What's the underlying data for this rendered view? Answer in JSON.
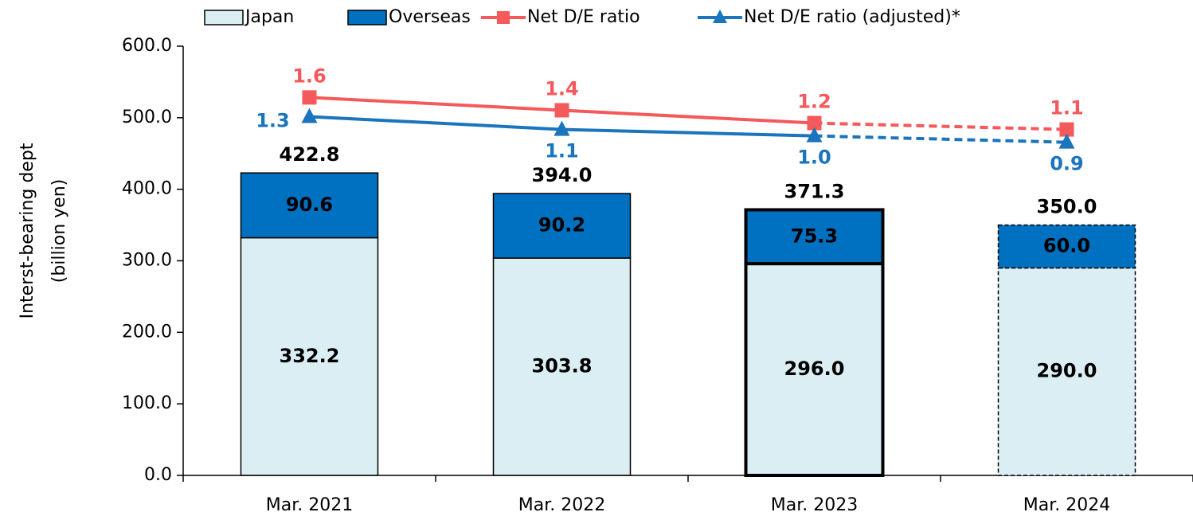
{
  "chart_data": {
    "type": "bar",
    "y_label": [
      "Interst-bearing dept",
      "(billion yen)"
    ],
    "categories": [
      "Mar. 2021",
      "Mar. 2022",
      "Mar. 2023",
      "Mar. 2024"
    ],
    "series": [
      {
        "name": "Japan",
        "color": "#daeef3",
        "values": [
          332.2,
          303.8,
          296,
          290
        ],
        "value_labels": [
          "332.2",
          "303.8",
          "296.0",
          "290.0"
        ]
      },
      {
        "name": "Overseas",
        "color": "#0070c0",
        "values": [
          90.6,
          90.2,
          75.3,
          60
        ],
        "value_labels": [
          "90.6",
          "90.2",
          "75.3",
          "60.0"
        ]
      },
      {
        "name": "Net D/E ratio",
        "color": "#f4595b",
        "type": "line",
        "axis": "y2",
        "values": [
          1.6,
          1.4,
          1.2,
          1.1
        ],
        "value_labels": [
          "1.6",
          "1.4",
          "1.2",
          "1.1"
        ]
      },
      {
        "name": "Net D/E ratio (adjusted)*",
        "color": "#1a75bc",
        "type": "line",
        "axis": "y2",
        "values": [
          1.3,
          1.1,
          1,
          0.9
        ],
        "value_labels": [
          "1.3",
          "1.1",
          "1.0",
          "0.9"
        ]
      }
    ],
    "totals": [
      422.8,
      394,
      371.3,
      350
    ],
    "total_labels": [
      "422.8",
      "394.0",
      "371.3",
      "350.0"
    ],
    "ylim": [
      0,
      600
    ],
    "yticks": [
      {
        "value": 0,
        "label": "0.0"
      },
      {
        "value": 100,
        "label": "100.0"
      },
      {
        "value": 200,
        "label": "200.0"
      },
      {
        "value": 300,
        "label": "300.0"
      },
      {
        "value": 400,
        "label": "400.0"
      },
      {
        "value": 500,
        "label": "500.0"
      },
      {
        "value": 600,
        "label": "600.0"
      }
    ],
    "y2lim": [
      -4.3,
      2.4
    ],
    "legend": "top"
  }
}
